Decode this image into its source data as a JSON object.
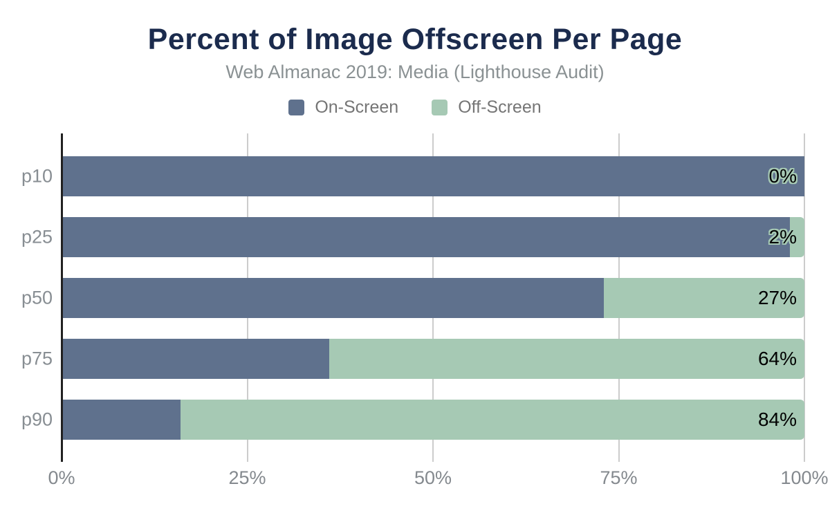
{
  "title": "Percent of Image Offscreen Per Page",
  "subtitle": "Web Almanac 2019: Media (Lighthouse Audit)",
  "colors": {
    "on_screen": "#5f718d",
    "off_screen": "#a6c9b4",
    "title": "#1b2b4d",
    "gridline": "#cccccc",
    "axis_line": "#212121",
    "label_gray": "#888e93"
  },
  "legend": {
    "items": [
      {
        "label": "On-Screen",
        "color": "#5f718d"
      },
      {
        "label": "Off-Screen",
        "color": "#a6c9b4"
      }
    ]
  },
  "chart_data": {
    "type": "bar",
    "orientation": "horizontal",
    "stacked": true,
    "title": "Percent of Image Offscreen Per Page",
    "subtitle": "Web Almanac 2019: Media (Lighthouse Audit)",
    "categories": [
      "p10",
      "p25",
      "p50",
      "p75",
      "p90"
    ],
    "series": [
      {
        "name": "On-Screen",
        "color": "#5f718d",
        "values": [
          100,
          98,
          73,
          36,
          16
        ]
      },
      {
        "name": "Off-Screen",
        "color": "#a6c9b4",
        "values": [
          0,
          2,
          27,
          64,
          84
        ]
      }
    ],
    "value_labels": [
      "0%",
      "2%",
      "27%",
      "64%",
      "84%"
    ],
    "xlim": [
      0,
      100
    ],
    "x_tick_values": [
      0,
      25,
      50,
      75,
      100
    ],
    "x_tick_labels": [
      "0%",
      "25%",
      "50%",
      "75%",
      "100%"
    ],
    "xlabel": "",
    "ylabel": "",
    "grid": true,
    "legend_position": "top"
  }
}
